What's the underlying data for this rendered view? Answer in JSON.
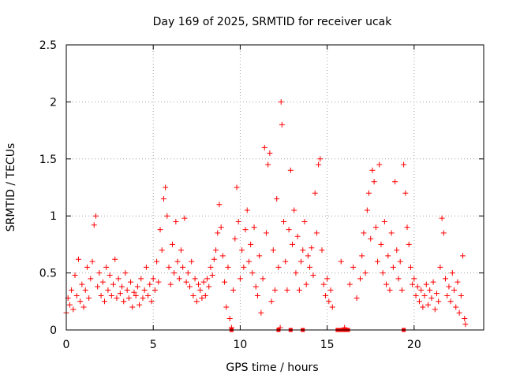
{
  "chart_data": {
    "type": "scatter",
    "title": "Day 169 of 2025, SRMTID for receiver ucak",
    "xlabel": "GPS time / hours",
    "ylabel": "SRMTID / TECUs",
    "xlim": [
      0,
      24
    ],
    "ylim": [
      0,
      2.5
    ],
    "x_ticks": [
      0,
      5,
      10,
      15,
      20
    ],
    "x_tick_labels": [
      "0",
      "5",
      "10",
      "15",
      "20"
    ],
    "y_ticks": [
      0,
      0.5,
      1,
      1.5,
      2,
      2.5
    ],
    "y_tick_labels": [
      "0",
      "0.5",
      "1",
      "1.5",
      "2",
      "2.5"
    ],
    "grid": true,
    "marker": "+",
    "series": [
      {
        "name": "SRMTID",
        "color": "#ff0000",
        "points": [
          [
            0.0,
            0.15
          ],
          [
            0.1,
            0.28
          ],
          [
            0.2,
            0.22
          ],
          [
            0.3,
            0.35
          ],
          [
            0.4,
            0.18
          ],
          [
            0.5,
            0.48
          ],
          [
            0.6,
            0.3
          ],
          [
            0.7,
            0.62
          ],
          [
            0.8,
            0.25
          ],
          [
            0.9,
            0.4
          ],
          [
            1.0,
            0.2
          ],
          [
            1.1,
            0.35
          ],
          [
            1.2,
            0.55
          ],
          [
            1.3,
            0.28
          ],
          [
            1.4,
            0.45
          ],
          [
            1.5,
            0.6
          ],
          [
            1.6,
            0.92
          ],
          [
            1.7,
            1.0
          ],
          [
            1.8,
            0.38
          ],
          [
            1.9,
            0.5
          ],
          [
            2.0,
            0.3
          ],
          [
            2.1,
            0.42
          ],
          [
            2.2,
            0.25
          ],
          [
            2.3,
            0.55
          ],
          [
            2.4,
            0.35
          ],
          [
            2.5,
            0.48
          ],
          [
            2.6,
            0.3
          ],
          [
            2.7,
            0.4
          ],
          [
            2.8,
            0.62
          ],
          [
            2.9,
            0.28
          ],
          [
            3.0,
            0.45
          ],
          [
            3.1,
            0.32
          ],
          [
            3.2,
            0.38
          ],
          [
            3.3,
            0.25
          ],
          [
            3.4,
            0.5
          ],
          [
            3.5,
            0.35
          ],
          [
            3.6,
            0.28
          ],
          [
            3.7,
            0.42
          ],
          [
            3.8,
            0.2
          ],
          [
            3.9,
            0.33
          ],
          [
            4.0,
            0.3
          ],
          [
            4.1,
            0.38
          ],
          [
            4.2,
            0.22
          ],
          [
            4.3,
            0.45
          ],
          [
            4.4,
            0.28
          ],
          [
            4.5,
            0.35
          ],
          [
            4.6,
            0.55
          ],
          [
            4.7,
            0.3
          ],
          [
            4.8,
            0.4
          ],
          [
            4.9,
            0.25
          ],
          [
            5.0,
            0.45
          ],
          [
            5.1,
            0.35
          ],
          [
            5.2,
            0.6
          ],
          [
            5.3,
            0.42
          ],
          [
            5.4,
            0.88
          ],
          [
            5.5,
            0.7
          ],
          [
            5.6,
            1.15
          ],
          [
            5.7,
            1.25
          ],
          [
            5.8,
            1.0
          ],
          [
            5.9,
            0.55
          ],
          [
            6.0,
            0.4
          ],
          [
            6.1,
            0.75
          ],
          [
            6.2,
            0.5
          ],
          [
            6.3,
            0.95
          ],
          [
            6.4,
            0.6
          ],
          [
            6.5,
            0.45
          ],
          [
            6.6,
            0.7
          ],
          [
            6.7,
            0.55
          ],
          [
            6.8,
            0.98
          ],
          [
            6.9,
            0.42
          ],
          [
            7.0,
            0.5
          ],
          [
            7.1,
            0.38
          ],
          [
            7.2,
            0.6
          ],
          [
            7.3,
            0.3
          ],
          [
            7.4,
            0.45
          ],
          [
            7.5,
            0.25
          ],
          [
            7.6,
            0.4
          ],
          [
            7.7,
            0.35
          ],
          [
            7.8,
            0.28
          ],
          [
            7.9,
            0.42
          ],
          [
            8.0,
            0.3
          ],
          [
            8.1,
            0.45
          ],
          [
            8.2,
            0.38
          ],
          [
            8.3,
            0.55
          ],
          [
            8.4,
            0.48
          ],
          [
            8.5,
            0.62
          ],
          [
            8.6,
            0.7
          ],
          [
            8.7,
            0.85
          ],
          [
            8.8,
            1.1
          ],
          [
            8.9,
            0.9
          ],
          [
            9.0,
            0.65
          ],
          [
            9.1,
            0.42
          ],
          [
            9.2,
            0.2
          ],
          [
            9.3,
            0.55
          ],
          [
            9.4,
            0.1
          ],
          [
            9.5,
            0.02
          ],
          [
            9.6,
            0.35
          ],
          [
            9.7,
            0.8
          ],
          [
            9.8,
            1.25
          ],
          [
            9.9,
            0.95
          ],
          [
            10.0,
            0.45
          ],
          [
            10.1,
            0.7
          ],
          [
            10.2,
            0.55
          ],
          [
            10.3,
            0.88
          ],
          [
            10.4,
            1.05
          ],
          [
            10.5,
            0.6
          ],
          [
            10.6,
            0.75
          ],
          [
            10.7,
            0.5
          ],
          [
            10.8,
            0.9
          ],
          [
            10.9,
            0.38
          ],
          [
            11.0,
            0.3
          ],
          [
            11.1,
            0.65
          ],
          [
            11.2,
            0.15
          ],
          [
            11.3,
            0.45
          ],
          [
            11.4,
            1.6
          ],
          [
            11.5,
            0.85
          ],
          [
            11.6,
            1.45
          ],
          [
            11.7,
            1.55
          ],
          [
            11.8,
            0.25
          ],
          [
            11.9,
            0.7
          ],
          [
            12.0,
            0.35
          ],
          [
            12.1,
            1.15
          ],
          [
            12.2,
            0.55
          ],
          [
            12.3,
            0.02
          ],
          [
            12.35,
            2.0
          ],
          [
            12.4,
            1.8
          ],
          [
            12.5,
            0.95
          ],
          [
            12.6,
            0.6
          ],
          [
            12.7,
            0.35
          ],
          [
            12.8,
            0.88
          ],
          [
            12.9,
            1.4
          ],
          [
            13.0,
            0.75
          ],
          [
            13.1,
            1.05
          ],
          [
            13.2,
            0.5
          ],
          [
            13.3,
            0.82
          ],
          [
            13.4,
            0.35
          ],
          [
            13.5,
            0.6
          ],
          [
            13.6,
            0.7
          ],
          [
            13.7,
            0.95
          ],
          [
            13.8,
            0.4
          ],
          [
            13.9,
            0.65
          ],
          [
            14.0,
            0.55
          ],
          [
            14.1,
            0.72
          ],
          [
            14.2,
            0.48
          ],
          [
            14.3,
            1.2
          ],
          [
            14.4,
            0.85
          ],
          [
            14.5,
            1.45
          ],
          [
            14.6,
            1.5
          ],
          [
            14.7,
            0.7
          ],
          [
            14.8,
            0.4
          ],
          [
            14.9,
            0.3
          ],
          [
            15.0,
            0.45
          ],
          [
            15.1,
            0.25
          ],
          [
            15.2,
            0.35
          ],
          [
            15.3,
            0.2
          ],
          [
            15.8,
            0.6
          ],
          [
            16.0,
            0.02
          ],
          [
            16.3,
            0.4
          ],
          [
            16.5,
            0.55
          ],
          [
            16.7,
            0.28
          ],
          [
            16.9,
            0.45
          ],
          [
            17.0,
            0.65
          ],
          [
            17.1,
            0.85
          ],
          [
            17.2,
            0.5
          ],
          [
            17.3,
            1.05
          ],
          [
            17.4,
            1.2
          ],
          [
            17.5,
            0.8
          ],
          [
            17.6,
            1.4
          ],
          [
            17.7,
            1.3
          ],
          [
            17.8,
            0.9
          ],
          [
            17.9,
            0.6
          ],
          [
            18.0,
            1.45
          ],
          [
            18.1,
            0.75
          ],
          [
            18.2,
            0.5
          ],
          [
            18.3,
            0.95
          ],
          [
            18.4,
            0.4
          ],
          [
            18.5,
            0.65
          ],
          [
            18.6,
            0.35
          ],
          [
            18.7,
            0.85
          ],
          [
            18.8,
            0.55
          ],
          [
            18.9,
            1.3
          ],
          [
            19.0,
            0.7
          ],
          [
            19.1,
            0.45
          ],
          [
            19.2,
            0.6
          ],
          [
            19.3,
            0.35
          ],
          [
            19.4,
            1.45
          ],
          [
            19.5,
            1.2
          ],
          [
            19.6,
            0.9
          ],
          [
            19.7,
            0.75
          ],
          [
            19.8,
            0.55
          ],
          [
            19.9,
            0.4
          ],
          [
            20.0,
            0.45
          ],
          [
            20.1,
            0.3
          ],
          [
            20.2,
            0.38
          ],
          [
            20.3,
            0.25
          ],
          [
            20.4,
            0.35
          ],
          [
            20.5,
            0.2
          ],
          [
            20.6,
            0.3
          ],
          [
            20.7,
            0.4
          ],
          [
            20.8,
            0.22
          ],
          [
            20.9,
            0.35
          ],
          [
            21.0,
            0.28
          ],
          [
            21.1,
            0.42
          ],
          [
            21.2,
            0.18
          ],
          [
            21.3,
            0.32
          ],
          [
            21.4,
            0.25
          ],
          [
            21.5,
            0.55
          ],
          [
            21.6,
            0.98
          ],
          [
            21.7,
            0.85
          ],
          [
            21.8,
            0.45
          ],
          [
            21.9,
            0.3
          ],
          [
            22.0,
            0.38
          ],
          [
            22.1,
            0.25
          ],
          [
            22.2,
            0.5
          ],
          [
            22.3,
            0.35
          ],
          [
            22.4,
            0.2
          ],
          [
            22.5,
            0.42
          ],
          [
            22.6,
            0.15
          ],
          [
            22.7,
            0.3
          ],
          [
            22.8,
            0.65
          ],
          [
            22.9,
            0.1
          ],
          [
            22.95,
            0.05
          ]
        ],
        "baseline_points": [
          [
            9.5,
            0.0
          ],
          [
            12.2,
            0.0
          ],
          [
            12.9,
            0.0
          ],
          [
            13.6,
            0.0
          ],
          [
            15.6,
            0.0
          ],
          [
            15.8,
            0.0
          ],
          [
            16.0,
            0.0
          ],
          [
            16.2,
            0.0
          ],
          [
            19.4,
            0.0
          ]
        ]
      }
    ]
  }
}
